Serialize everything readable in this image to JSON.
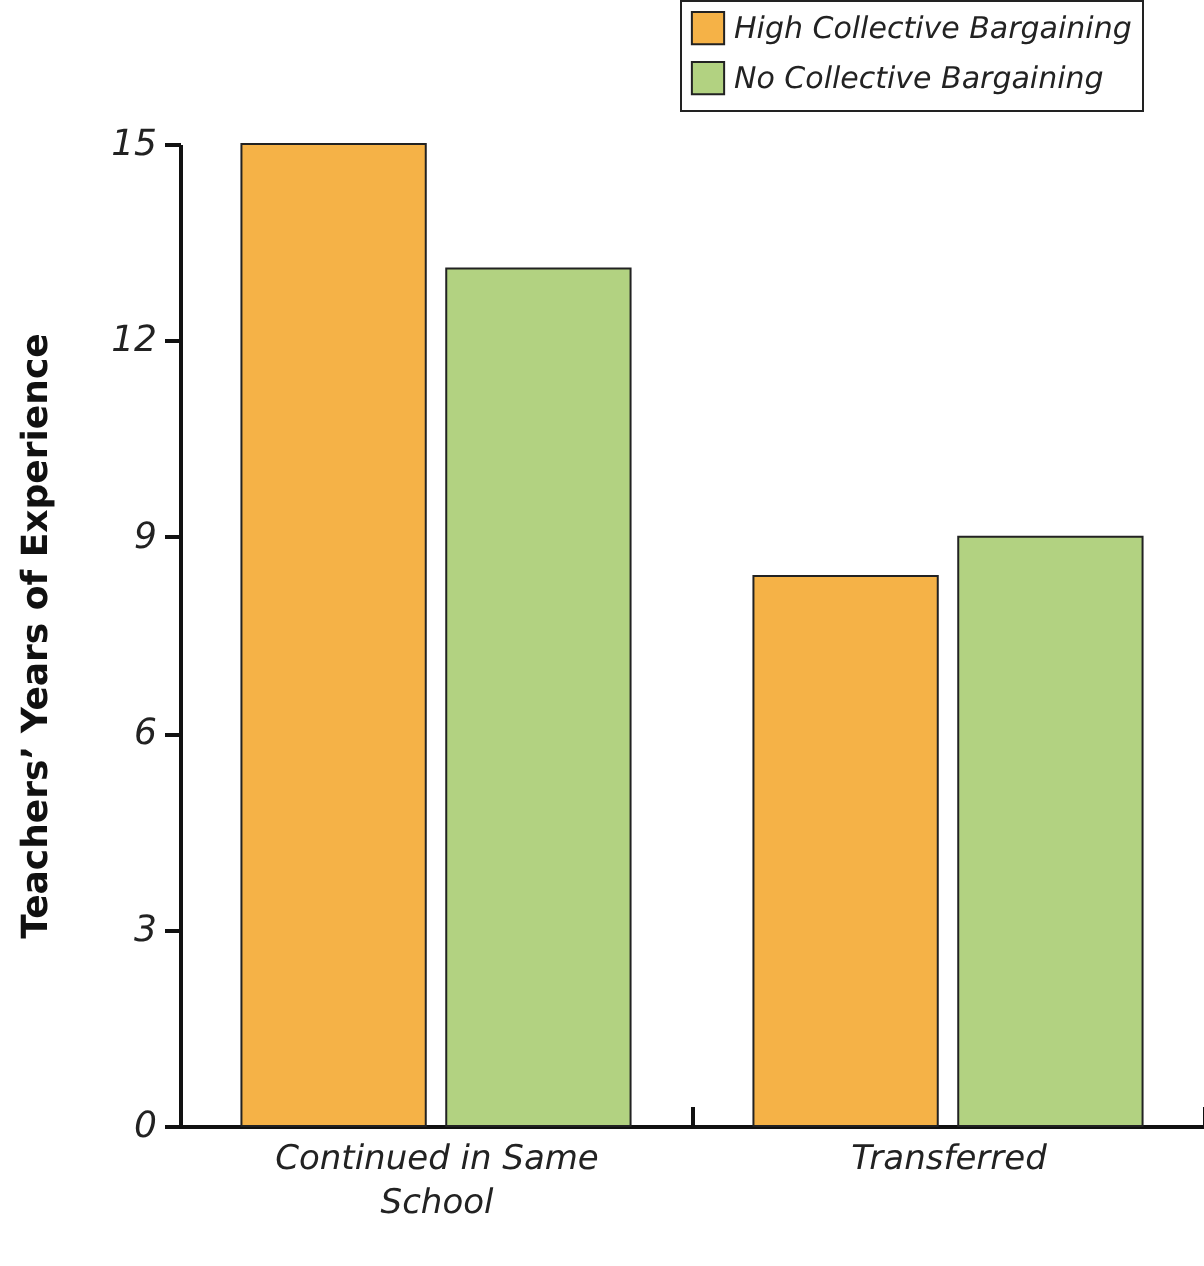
{
  "chart_data": {
    "type": "bar",
    "ylabel": "Teachers’ Years of Experience",
    "categories": [
      "Continued in Same School",
      "Transferred"
    ],
    "series": [
      {
        "name": "High Collective Bargaining",
        "color": "#f5b247",
        "values": [
          15,
          8.4
        ]
      },
      {
        "name": "No Collective Bargaining",
        "color": "#b2d281",
        "values": [
          13.1,
          9
        ]
      }
    ],
    "ylim": [
      0,
      15
    ],
    "yticks": [
      0,
      3,
      6,
      9,
      12,
      15
    ],
    "grid": false,
    "legend": "top right"
  }
}
